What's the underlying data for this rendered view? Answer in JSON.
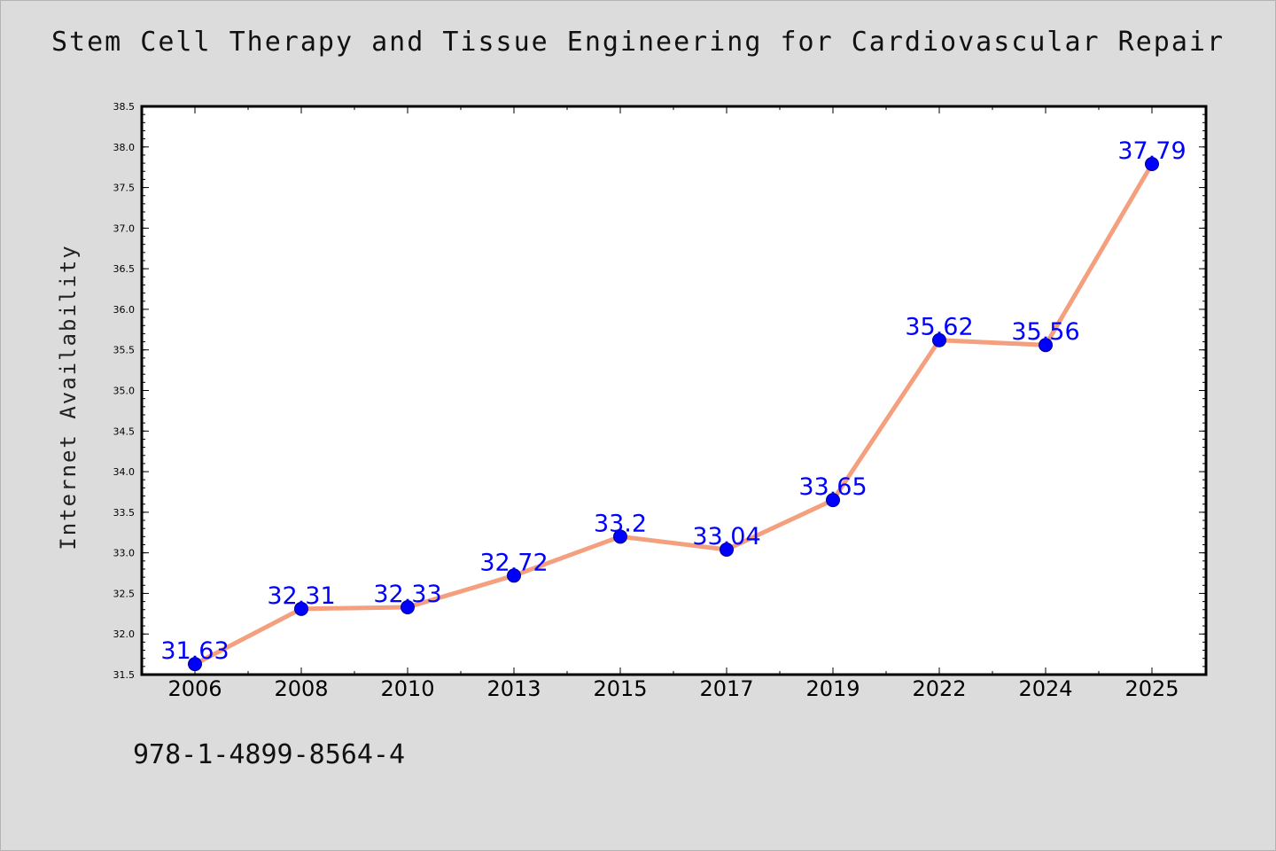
{
  "chart_data": {
    "type": "line",
    "title": "Stem Cell Therapy and Tissue Engineering for Cardiovascular Repair",
    "xlabel": "",
    "ylabel": "Internet Availability",
    "categories": [
      "2006",
      "2008",
      "2010",
      "2013",
      "2015",
      "2017",
      "2019",
      "2022",
      "2024",
      "2025"
    ],
    "series": [
      {
        "values": [
          31.63,
          32.31,
          32.33,
          32.72,
          33.2,
          33.04,
          33.65,
          35.62,
          35.56,
          37.79
        ]
      }
    ],
    "data_labels": [
      "31.63",
      "32.31",
      "32.33",
      "32.72",
      "33.2",
      "33.04",
      "33.65",
      "35.62",
      "35.56",
      "37.79"
    ],
    "ylim": [
      31.5,
      38.5
    ],
    "yticks": [
      "31.5",
      "32.0",
      "32.5",
      "33.0",
      "33.5",
      "34.0",
      "34.5",
      "35.0",
      "35.5",
      "36.0",
      "36.5",
      "37.0",
      "37.5",
      "38.0",
      "38.5"
    ],
    "grid": false,
    "line_color": "#f4a07e",
    "marker_color": "#0000ff",
    "label_color": "#0000ff"
  },
  "footer": {
    "isbn": "978-1-4899-8564-4"
  }
}
